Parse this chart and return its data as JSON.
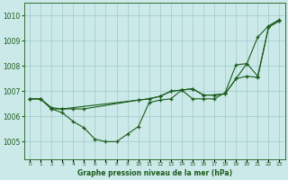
{
  "title": "Graphe pression niveau de la mer (hPa)",
  "bg_color": "#cce9e9",
  "line_color": "#1a5c1a",
  "grid_color": "#9dc8c8",
  "x_labels": [
    "0",
    "1",
    "2",
    "3",
    "4",
    "5",
    "6",
    "7",
    "8",
    "9",
    "10",
    "11",
    "12",
    "13",
    "14",
    "15",
    "16",
    "17",
    "18",
    "19",
    "20",
    "21",
    "22",
    "23"
  ],
  "yticks": [
    1005,
    1006,
    1007,
    1008,
    1009,
    1010
  ],
  "ylim": [
    1004.3,
    1010.5
  ],
  "xlim": [
    -0.5,
    23.5
  ],
  "line1_x": [
    0,
    1,
    2,
    3,
    4,
    5,
    10,
    11,
    12,
    13,
    14,
    15,
    16,
    17,
    18,
    19,
    20,
    21,
    22,
    23
  ],
  "line1_y": [
    1006.7,
    1006.7,
    1006.3,
    1006.3,
    1006.3,
    1006.3,
    1006.65,
    1006.7,
    1006.8,
    1007.0,
    1007.05,
    1007.1,
    1006.85,
    1006.85,
    1006.9,
    1007.5,
    1008.1,
    1007.6,
    1009.55,
    1009.8
  ],
  "line2_x": [
    0,
    1,
    2,
    3,
    10,
    11,
    12,
    13,
    14,
    15,
    16,
    17,
    18,
    19,
    20,
    21,
    22,
    23
  ],
  "line2_y": [
    1006.7,
    1006.7,
    1006.35,
    1006.3,
    1006.65,
    1006.7,
    1006.8,
    1007.0,
    1007.05,
    1007.1,
    1006.85,
    1006.85,
    1006.9,
    1007.5,
    1007.6,
    1007.55,
    1009.55,
    1009.8
  ],
  "line3_x": [
    0,
    1,
    2,
    3,
    4,
    5,
    6,
    7,
    8,
    9,
    10,
    11,
    12,
    13,
    14,
    15,
    16,
    17,
    18,
    19,
    20,
    21,
    22,
    23
  ],
  "line3_y": [
    1006.7,
    1006.7,
    1006.3,
    1006.15,
    1005.8,
    1005.55,
    1005.1,
    1005.0,
    1005.0,
    1005.3,
    1005.6,
    1006.55,
    1006.65,
    1006.7,
    1007.05,
    1006.7,
    1006.7,
    1006.7,
    1006.95,
    1008.05,
    1008.1,
    1009.15,
    1009.6,
    1009.85
  ]
}
